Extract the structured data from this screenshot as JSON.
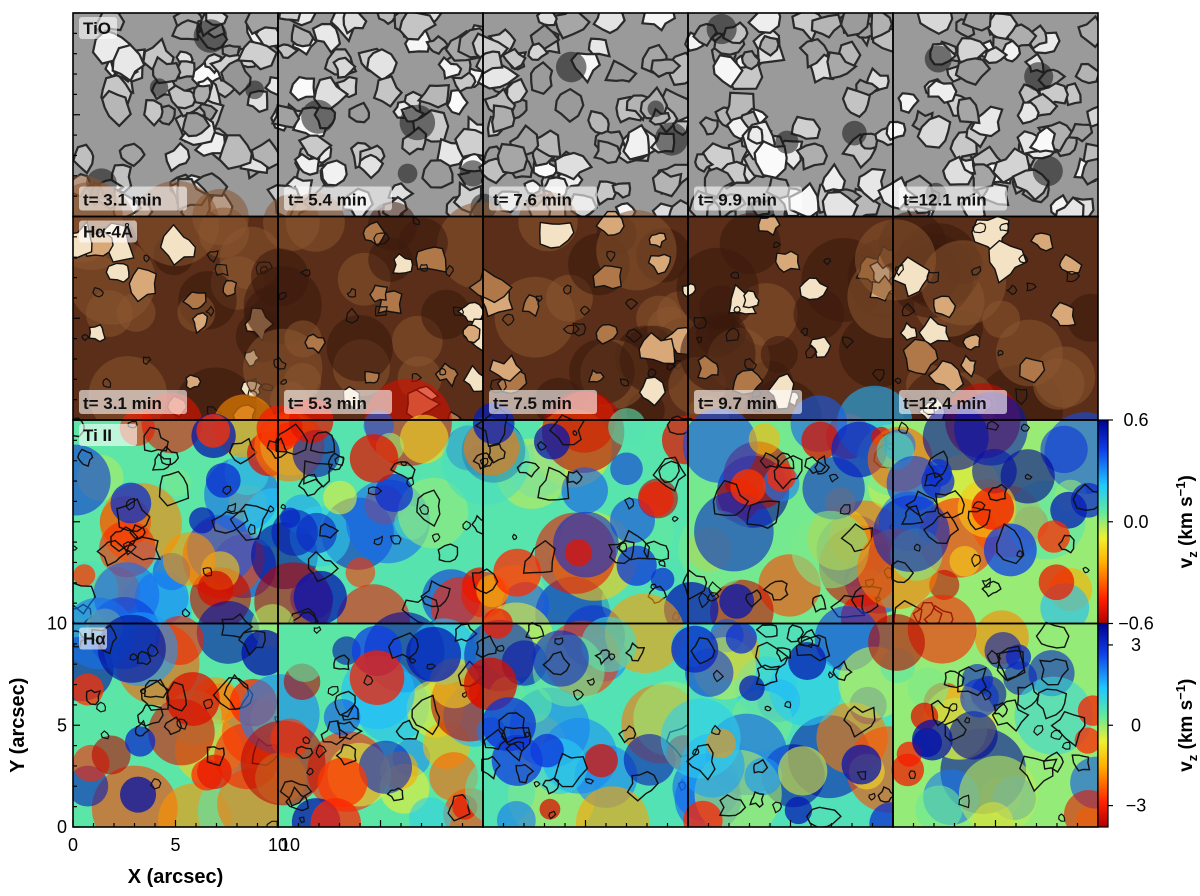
{
  "chart_data": {
    "type": "heatmap",
    "rows": [
      {
        "name": "TiO",
        "colormap": "gray",
        "times": [
          "t= 3.1 min",
          "t= 5.4 min",
          "t= 7.6 min",
          "t= 9.9 min",
          "t=12.1 min"
        ]
      },
      {
        "name": "Hα-4Å",
        "colormap": "copper",
        "times": [
          "t= 3.1 min",
          "t= 5.3 min",
          "t= 7.5 min",
          "t= 9.7 min",
          "t=12.4 min"
        ]
      },
      {
        "name": "Ti II",
        "colormap": "jet_r",
        "times": []
      },
      {
        "name": "Hα",
        "colormap": "jet_r",
        "times": []
      }
    ],
    "columns": 5,
    "xlabel": "X (arcsec)",
    "ylabel": "Y (arcsec)",
    "xticks": [
      "0",
      "5",
      "10"
    ],
    "yticks": [
      "0",
      "5",
      "10"
    ],
    "xlim": [
      0,
      10
    ],
    "ylim": [
      0,
      10
    ],
    "second_column_first_xtick": "10",
    "colorbars": [
      {
        "row": "Ti II",
        "label": "v",
        "sub": "z",
        "unit": "(km s",
        "unit_sup": "−1",
        "unit_close": ")",
        "ticks": [
          "0.6",
          "0.0",
          "−0.6"
        ],
        "range": [
          -0.6,
          0.6
        ]
      },
      {
        "row": "Hα",
        "label": "v",
        "sub": "z",
        "unit": "(km s",
        "unit_sup": "−1",
        "unit_close": ")",
        "ticks": [
          "3",
          "0",
          "−3"
        ],
        "range": [
          -3.8,
          3.8
        ]
      }
    ],
    "contours": true
  }
}
